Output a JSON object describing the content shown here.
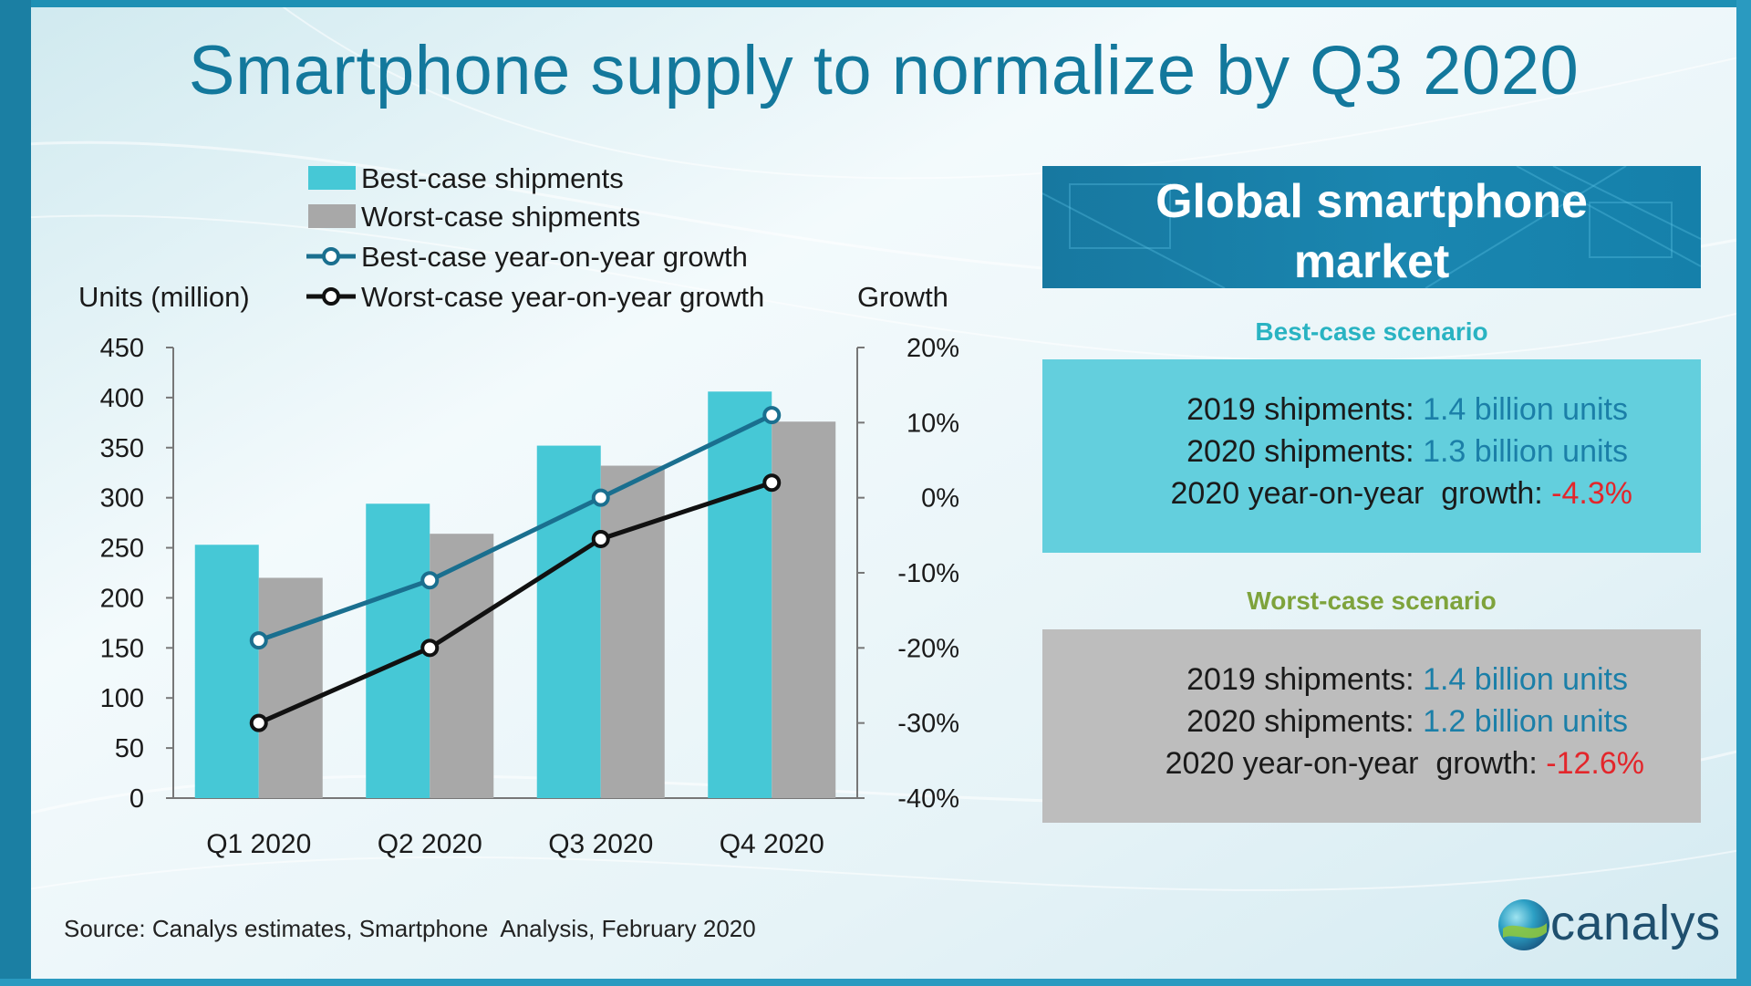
{
  "title": "Smartphone supply to normalize by Q3 2020",
  "colors": {
    "accent": "#13789c",
    "best_bar": "#46c8d6",
    "worst_bar": "#a8a8a8",
    "best_line": "#1a6f8f",
    "worst_line": "#111111",
    "negative": "#e3262b",
    "value_blue": "#1b7fa8"
  },
  "chart_data": {
    "type": "bar",
    "categories": [
      "Q1 2020",
      "Q2 2020",
      "Q3 2020",
      "Q4 2020"
    ],
    "series": [
      {
        "name": "Best-case shipments",
        "kind": "bar",
        "axis": "left",
        "values": [
          253,
          294,
          352,
          406
        ]
      },
      {
        "name": "Worst-case shipments",
        "kind": "bar",
        "axis": "left",
        "values": [
          220,
          264,
          332,
          376
        ]
      },
      {
        "name": "Best-case year-on-year growth",
        "kind": "line",
        "axis": "right",
        "values": [
          -19,
          -11,
          0,
          11
        ]
      },
      {
        "name": "Worst-case year-on-year growth",
        "kind": "line",
        "axis": "right",
        "values": [
          -30,
          -20,
          -5.5,
          2
        ]
      }
    ],
    "ylabel": "Units (million)",
    "y2label": "Growth",
    "ylim": [
      0,
      450
    ],
    "yticks": [
      "0",
      "50",
      "100",
      "150",
      "200",
      "250",
      "300",
      "350",
      "400",
      "450"
    ],
    "y2lim": [
      -40,
      20
    ],
    "y2ticks": [
      "-40%",
      "-30%",
      "-20%",
      "-10%",
      "0%",
      "10%",
      "20%"
    ],
    "legend_position": "top",
    "grid": false
  },
  "panel": {
    "header_line1": "Global smartphone",
    "header_line2": "market",
    "best": {
      "label": "Best-case scenario",
      "row1_label": "2019 shipments:",
      "row1_value": "1.4 billion units",
      "row2_label": "2020 shipments:",
      "row2_value": "1.3 billion units",
      "row3_label": "2020 year-on-year  growth:",
      "row3_value": "-4.3%"
    },
    "worst": {
      "label": "Worst-case scenario",
      "row1_label": "2019 shipments:",
      "row1_value": "1.4 billion units",
      "row2_label": "2020 shipments:",
      "row2_value": "1.2 billion units",
      "row3_label": "2020 year-on-year  growth:",
      "row3_value": "-12.6%"
    }
  },
  "source": "Source: Canalys estimates, Smartphone  Analysis, February 2020",
  "logo_text": "canalys"
}
